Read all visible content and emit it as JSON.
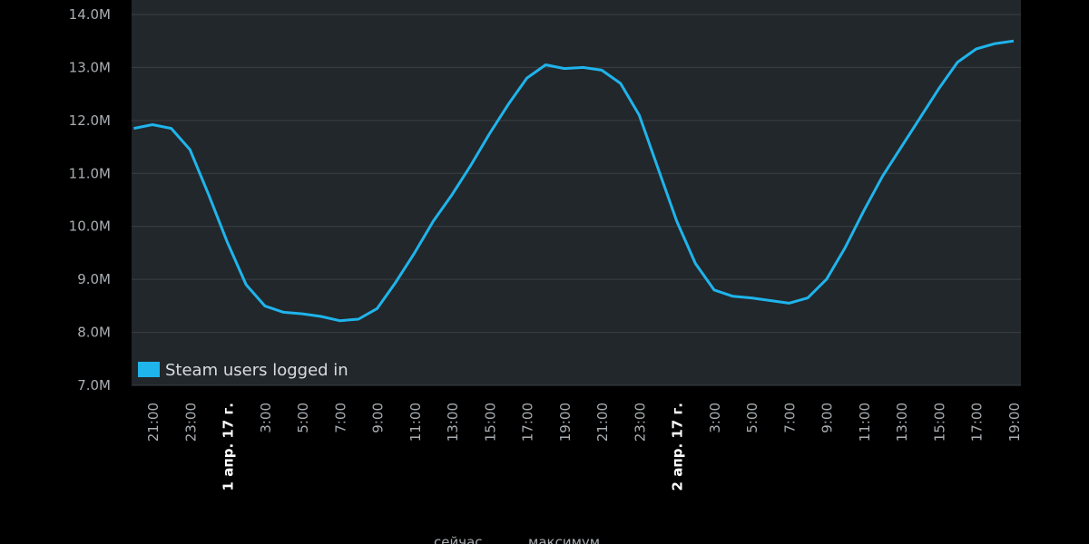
{
  "chart_data": {
    "type": "line",
    "categories": [
      null,
      "21:00",
      null,
      "23:00",
      null,
      "1 апр. 17 г.",
      null,
      "3:00",
      null,
      "5:00",
      null,
      "7:00",
      null,
      "9:00",
      null,
      "11:00",
      null,
      "13:00",
      null,
      "15:00",
      null,
      "17:00",
      null,
      "19:00",
      null,
      "21:00",
      null,
      "23:00",
      null,
      "2 апр. 17 г.",
      null,
      "3:00",
      null,
      "5:00",
      null,
      "7:00",
      null,
      "9:00",
      null,
      "11:00",
      null,
      "13:00",
      null,
      "15:00",
      null,
      "17:00",
      null,
      "19:00"
    ],
    "series": [
      {
        "name": "Steam users logged in",
        "color": "#1fb4ec",
        "values": [
          11850000,
          11920000,
          11850000,
          11450000,
          10600000,
          9700000,
          8900000,
          8500000,
          8380000,
          8350000,
          8300000,
          8220000,
          8250000,
          8450000,
          8950000,
          9500000,
          10100000,
          10600000,
          11150000,
          11750000,
          12300000,
          12800000,
          13050000,
          12980000,
          13000000,
          12950000,
          12700000,
          12100000,
          11100000,
          10100000,
          9300000,
          8800000,
          8680000,
          8650000,
          8600000,
          8550000,
          8650000,
          9000000,
          9600000,
          10300000,
          10950000,
          11500000,
          12050000,
          12600000,
          13100000,
          13350000,
          13450000,
          13500000
        ]
      }
    ],
    "ylim": [
      7000000,
      14000000
    ],
    "yticks": [
      {
        "value": 7000000,
        "label": "7.0M"
      },
      {
        "value": 8000000,
        "label": "8.0M"
      },
      {
        "value": 9000000,
        "label": "9.0M"
      },
      {
        "value": 10000000,
        "label": "10.0M"
      },
      {
        "value": 11000000,
        "label": "11.0M"
      },
      {
        "value": 12000000,
        "label": "12.0M"
      },
      {
        "value": 13000000,
        "label": "13.0M"
      },
      {
        "value": 14000000,
        "label": "14.0M"
      }
    ],
    "grid": true,
    "legend": "bottom-left",
    "footer": [
      "сейчас",
      "максимум"
    ]
  }
}
